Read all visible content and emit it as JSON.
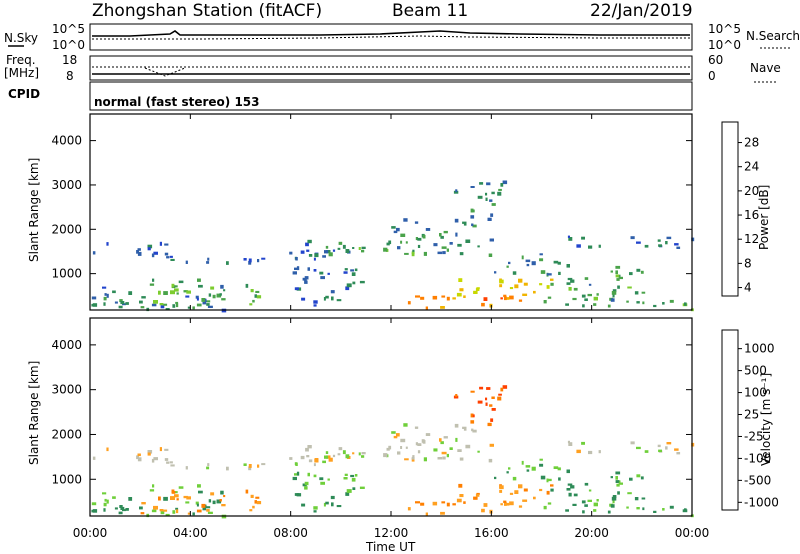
{
  "header": {
    "station": "Zhongshan Station (fitACF)",
    "beam": "Beam 11",
    "date": "22/Jan/2019"
  },
  "strip_labels": {
    "nsky": "N.Sky",
    "nsearch": "N.Search",
    "freq_line1": "Freq.",
    "freq_line2": "[MHz]",
    "nave": "Nave",
    "cpid": "CPID",
    "cpid_value": "normal (fast stereo) 153",
    "noise_ticks_left": [
      "10^5",
      "10^0"
    ],
    "noise_ticks_right": [
      "10^5",
      "10^0"
    ],
    "freq_ticks_left": [
      "18",
      "8"
    ],
    "freq_ticks_right": [
      "60",
      "0"
    ]
  },
  "x_axis": {
    "title": "Time UT",
    "ticks": [
      "00:00",
      "04:00",
      "08:00",
      "12:00",
      "16:00",
      "20:00",
      "00:00"
    ]
  },
  "power_panel": {
    "ylabel": "Slant Range [km]",
    "yticks": [
      "4000",
      "3000",
      "2000",
      "1000"
    ],
    "colorbar_title": "Power [dB]",
    "colorbar_ticks": [
      "28",
      "24",
      "20",
      "16",
      "12",
      "8",
      "4"
    ],
    "colors": [
      "#0000ee",
      "#2244cc",
      "#2f5faa",
      "#2e8b57",
      "#4aa34a",
      "#7ccc2e",
      "#c8d800",
      "#f0b400",
      "#ff7f00",
      "#ff4000",
      "#ee0000"
    ]
  },
  "velocity_panel": {
    "ylabel": "Slant Range [km]",
    "yticks": [
      "4000",
      "3000",
      "2000",
      "1000"
    ],
    "colorbar_title": "Velocity [m s⁻¹]",
    "colorbar_ticks": [
      "1000",
      "500",
      "100",
      "25",
      "-25",
      "-100",
      "-500",
      "-1000"
    ],
    "colors": [
      "#1e2fa8",
      "#2f5faa",
      "#2e8b57",
      "#4aa34a",
      "#6fcf3a",
      "#c0c0b0",
      "#c0c0b0",
      "#ffa020",
      "#ff7f00",
      "#ff4000",
      "#ee0000"
    ]
  },
  "chart_data": {
    "type": "heatmap",
    "title": "Zhongshan Station (fitACF)",
    "x_range_hours": [
      0,
      24
    ],
    "y_range_km": [
      180,
      4600
    ],
    "panels": [
      "Power [dB]",
      "Velocity [m s⁻¹]"
    ],
    "echo_regions": [
      {
        "t0": 0.0,
        "t1": 3.2,
        "r0": 1380,
        "r1": 1750,
        "power": 7,
        "velocity": 0
      },
      {
        "t0": 0.0,
        "t1": 5.5,
        "r0": 200,
        "r1": 900,
        "power": 9,
        "velocity": 100
      },
      {
        "t0": 2.0,
        "t1": 6.8,
        "r0": 250,
        "r1": 800,
        "power": 14,
        "velocity": -100
      },
      {
        "t0": 3.0,
        "t1": 8.0,
        "r0": 1250,
        "r1": 1450,
        "power": 7,
        "velocity": 0
      },
      {
        "t0": 7.5,
        "t1": 11.0,
        "r0": 1350,
        "r1": 1800,
        "power": 8,
        "velocity": 0
      },
      {
        "t0": 8.0,
        "t1": 11.0,
        "r0": 300,
        "r1": 1200,
        "power": 8,
        "velocity": 100
      },
      {
        "t0": 9.0,
        "t1": 13.0,
        "r0": 1400,
        "r1": 1750,
        "power": 14,
        "velocity": 0
      },
      {
        "t0": 12.0,
        "t1": 16.0,
        "r0": 1450,
        "r1": 2300,
        "power": 10,
        "velocity": 0
      },
      {
        "t0": 14.5,
        "t1": 16.5,
        "r0": 2200,
        "r1": 3100,
        "power": 10,
        "velocity": -500
      },
      {
        "t0": 12.5,
        "t1": 17.5,
        "r0": 250,
        "r1": 550,
        "power": 25,
        "velocity": -100
      },
      {
        "t0": 14.0,
        "t1": 18.5,
        "r0": 500,
        "r1": 900,
        "power": 22,
        "velocity": -100
      },
      {
        "t0": 16.0,
        "t1": 19.0,
        "r0": 1000,
        "r1": 1500,
        "power": 10,
        "velocity": 100
      },
      {
        "t0": 18.0,
        "t1": 22.0,
        "r0": 300,
        "r1": 1200,
        "power": 12,
        "velocity": 100
      },
      {
        "t0": 19.0,
        "t1": 24.0,
        "r0": 1600,
        "r1": 1900,
        "power": 8,
        "velocity": 0
      },
      {
        "t0": 21.0,
        "t1": 24.0,
        "r0": 200,
        "r1": 450,
        "power": 14,
        "velocity": 100
      }
    ]
  }
}
